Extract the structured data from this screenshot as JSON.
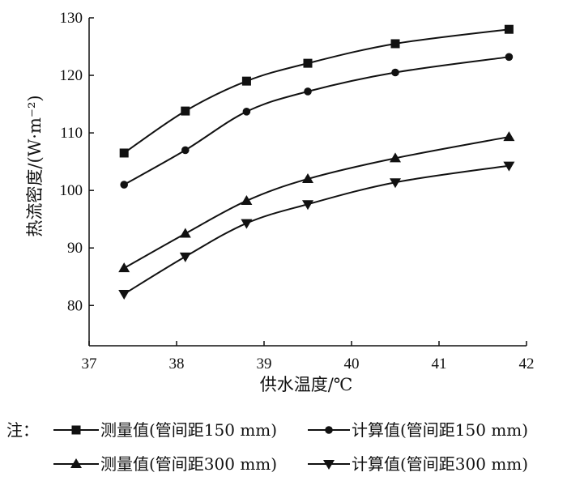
{
  "chart_data": {
    "type": "line",
    "xlabel": "供水温度/℃",
    "ylabel": "热流密度/(W·m⁻²)",
    "xlim": [
      37,
      42
    ],
    "ylim": [
      73,
      130
    ],
    "xticks": [
      37,
      38,
      39,
      40,
      41,
      42
    ],
    "yticks": [
      80,
      90,
      100,
      110,
      120,
      130
    ],
    "grid": false,
    "legend_prefix": "注：",
    "legend_position": "bottom",
    "x": [
      37.4,
      38.1,
      38.8,
      39.5,
      40.5,
      41.8
    ],
    "series": [
      {
        "name": "测量值(管间距150 mm)",
        "marker": "square",
        "values": [
          106.5,
          113.8,
          119.0,
          122.1,
          125.5,
          128.0
        ]
      },
      {
        "name": "计算值(管间距150 mm)",
        "marker": "circle",
        "values": [
          101.0,
          107.0,
          113.7,
          117.2,
          120.5,
          123.2
        ]
      },
      {
        "name": "测量值(管间距300 mm)",
        "marker": "triangle-up",
        "values": [
          86.5,
          92.5,
          98.2,
          102.0,
          105.6,
          109.3
        ]
      },
      {
        "name": "计算值(管间距300 mm)",
        "marker": "triangle-down",
        "values": [
          82.0,
          88.5,
          94.3,
          97.6,
          101.4,
          104.3
        ]
      }
    ]
  }
}
